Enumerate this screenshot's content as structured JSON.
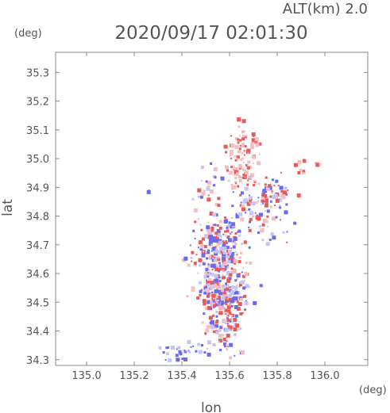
{
  "chart_data": {
    "type": "heatmap",
    "title": "2020/09/17 02:01:30",
    "subtitle": "ALT(km) 2.0",
    "xlabel": "lon",
    "ylabel": "lat",
    "xunit": "(deg)",
    "yunit": "(deg)",
    "xlim": [
      134.87,
      136.18
    ],
    "ylim": [
      34.28,
      35.37
    ],
    "xticks": [
      "135.0",
      "135.2",
      "135.4",
      "135.6",
      "135.8",
      "136.0"
    ],
    "yticks": [
      "34.3",
      "34.4",
      "34.5",
      "34.6",
      "34.7",
      "34.8",
      "34.9",
      "35.0",
      "35.1",
      "35.2",
      "35.3"
    ],
    "grid": false,
    "colors": {
      "positive": "#e85a5a",
      "positive_light": "#f7bcbc",
      "negative": "#6a6af0",
      "negative_light": "#c4c4f7",
      "axis": "#888888"
    },
    "clusters": [
      {
        "lon": 135.56,
        "lat": 34.62,
        "rlon": 0.06,
        "rlat": 0.07,
        "count": 260,
        "sign": "mixed"
      },
      {
        "lon": 135.56,
        "lat": 34.5,
        "rlon": 0.04,
        "rlat": 0.05,
        "count": 150,
        "sign": "mixed"
      },
      {
        "lon": 135.55,
        "lat": 34.73,
        "rlon": 0.04,
        "rlat": 0.03,
        "count": 80,
        "sign": "mixed"
      },
      {
        "lon": 135.56,
        "lat": 34.42,
        "rlon": 0.03,
        "rlat": 0.02,
        "count": 40,
        "sign": "mixed"
      },
      {
        "lon": 135.66,
        "lat": 35.03,
        "rlon": 0.04,
        "rlat": 0.04,
        "count": 70,
        "sign": "positive"
      },
      {
        "lon": 135.64,
        "lat": 34.95,
        "rlon": 0.03,
        "rlat": 0.03,
        "count": 40,
        "sign": "positive"
      },
      {
        "lon": 135.7,
        "lat": 34.82,
        "rlon": 0.07,
        "rlat": 0.05,
        "count": 90,
        "sign": "mixed"
      },
      {
        "lon": 135.78,
        "lat": 34.88,
        "rlon": 0.05,
        "rlat": 0.03,
        "count": 50,
        "sign": "mixed"
      },
      {
        "lon": 135.52,
        "lat": 34.88,
        "rlon": 0.04,
        "rlat": 0.05,
        "count": 35,
        "sign": "mixed"
      },
      {
        "lon": 135.44,
        "lat": 34.34,
        "rlon": 0.07,
        "rlat": 0.02,
        "count": 35,
        "sign": "negative"
      },
      {
        "lon": 135.6,
        "lat": 34.36,
        "rlon": 0.03,
        "rlat": 0.02,
        "count": 15,
        "sign": "mixed"
      },
      {
        "lon": 135.88,
        "lat": 34.97,
        "rlon": 0.02,
        "rlat": 0.02,
        "count": 8,
        "sign": "positive"
      },
      {
        "lon": 135.97,
        "lat": 34.99,
        "rlon": 0.01,
        "rlat": 0.01,
        "count": 5,
        "sign": "positive"
      },
      {
        "lon": 135.25,
        "lat": 34.89,
        "rlon": 0.01,
        "rlat": 0.01,
        "count": 3,
        "sign": "negative"
      },
      {
        "lon": 135.63,
        "lat": 35.14,
        "rlon": 0.01,
        "rlat": 0.01,
        "count": 3,
        "sign": "positive"
      }
    ]
  }
}
